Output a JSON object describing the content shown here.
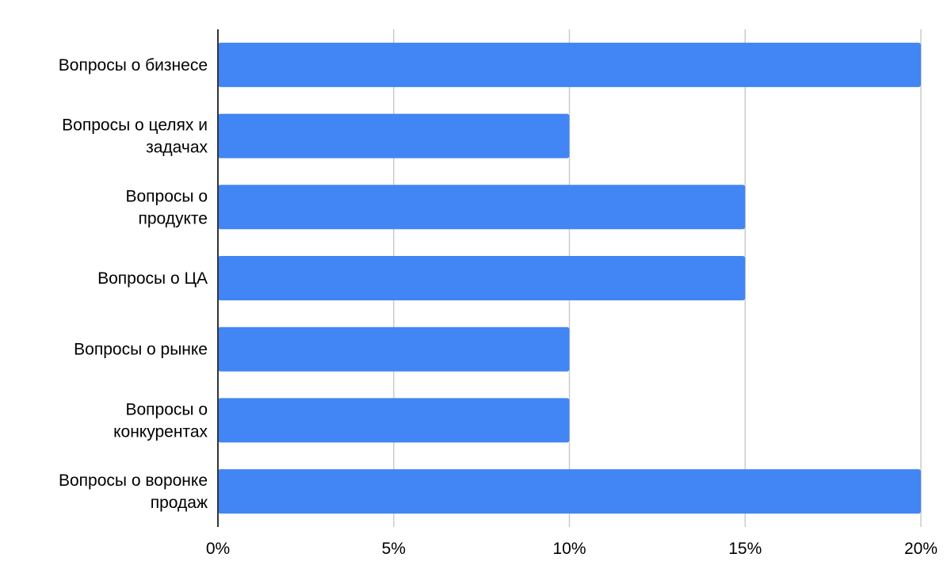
{
  "chart_data": {
    "type": "bar",
    "orientation": "horizontal",
    "categories": [
      [
        "Вопросы о бизнесе"
      ],
      [
        "Вопросы о целях и",
        "задачах"
      ],
      [
        "Вопросы о",
        "продукте"
      ],
      [
        "Вопросы о ЦА"
      ],
      [
        "Вопросы о рынке"
      ],
      [
        "Вопросы о",
        "конкурентах"
      ],
      [
        "Вопросы о воронке",
        "продаж"
      ]
    ],
    "values": [
      20,
      10,
      15,
      15,
      10,
      10,
      20
    ],
    "value_unit": "%",
    "xlim": [
      0,
      20
    ],
    "x_ticks": [
      0,
      5,
      10,
      15,
      20
    ],
    "x_tick_labels": [
      "0%",
      "5%",
      "10%",
      "15%",
      "20%"
    ],
    "title": "",
    "xlabel": "",
    "ylabel": "",
    "grid": true,
    "legend": "none",
    "bar_color": "#4285F4",
    "grid_color": "#CCCCCC",
    "axis_color": "#333333"
  }
}
